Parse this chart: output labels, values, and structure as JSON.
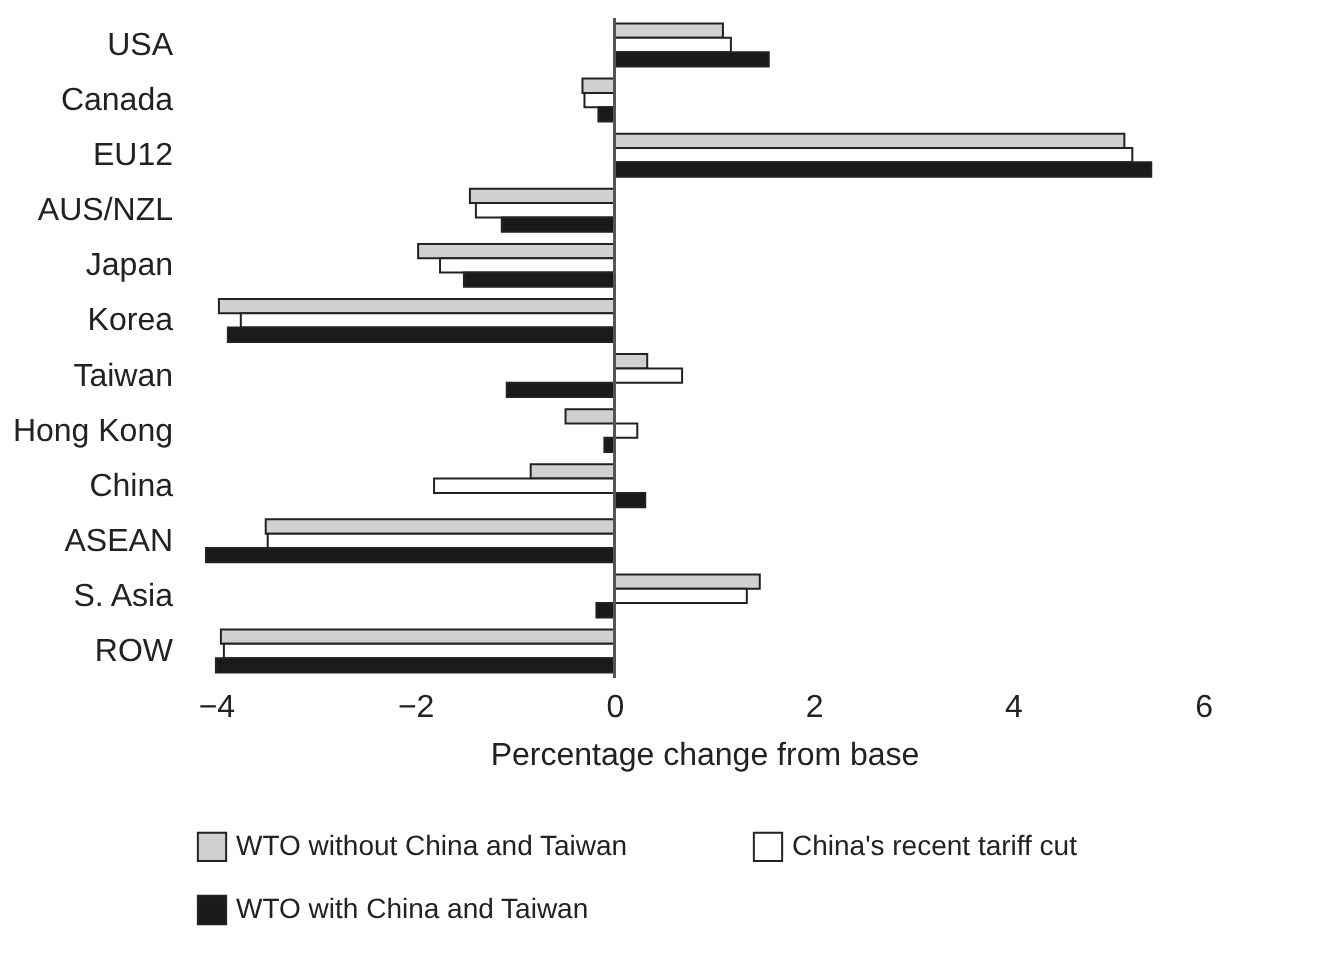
{
  "chart_data": {
    "type": "bar",
    "orientation": "horizontal",
    "xlabel": "Percentage change from base",
    "categories": [
      "USA",
      "Canada",
      "EU12",
      "AUS/NZL",
      "Japan",
      "Korea",
      "Taiwan",
      "Hong Kong",
      "China",
      "ASEAN",
      "S. Asia",
      "ROW"
    ],
    "series": [
      {
        "name": "WTO without China and Taiwan",
        "color": "#d0d0d0",
        "values": [
          1.09,
          -0.32,
          5.12,
          -1.45,
          -1.97,
          -3.97,
          0.33,
          -0.49,
          -0.84,
          -3.5,
          1.46,
          -3.95
        ]
      },
      {
        "name": "China's recent tariff cut",
        "color": "#ffffff",
        "values": [
          1.17,
          -0.3,
          5.2,
          -1.39,
          -1.75,
          -3.75,
          0.68,
          0.23,
          -1.81,
          -3.48,
          1.33,
          -3.92
        ]
      },
      {
        "name": "WTO with China and Taiwan",
        "color": "#1a1a1a",
        "values": [
          1.55,
          -0.16,
          5.39,
          -1.13,
          -1.51,
          -3.88,
          -1.08,
          -0.1,
          0.31,
          -4.1,
          -0.18,
          -4.0
        ]
      }
    ],
    "xlim": [
      -4.2,
      6
    ],
    "xticks": [
      -4,
      -2,
      0,
      2,
      4,
      6
    ],
    "grid": false,
    "legend": "bottom",
    "ref_lines": [
      {
        "axis": "x",
        "value": 0,
        "color": "#555555"
      }
    ]
  }
}
